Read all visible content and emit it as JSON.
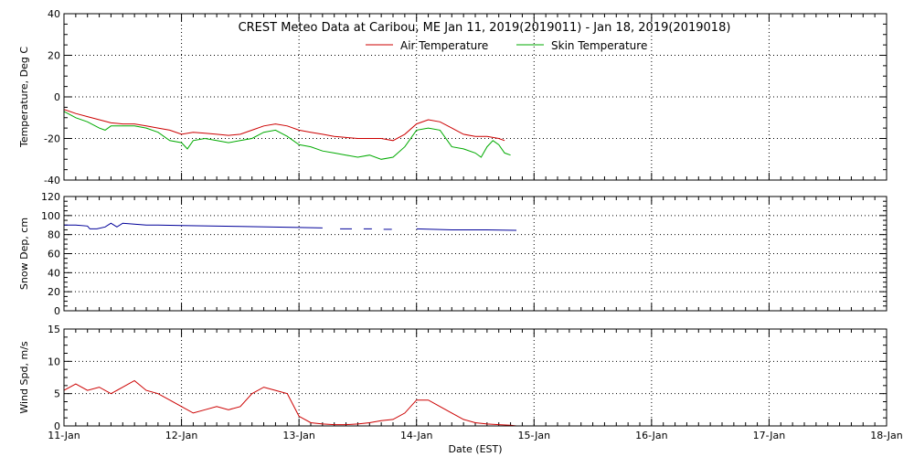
{
  "chart_data": {
    "type": "line",
    "title": "CREST Meteo Data at Caribou, ME   Jan 11, 2019(2019011) - Jan 18, 2019(2019018)",
    "x_tick_labels": [
      "11-Jan",
      "12-Jan",
      "13-Jan",
      "14-Jan",
      "15-Jan",
      "16-Jan",
      "17-Jan",
      "18-Jan"
    ],
    "xlabel": "Date (EST)",
    "xlim": [
      0,
      7
    ],
    "grid": true,
    "panels": [
      {
        "name": "temperature",
        "ylabel": "Temperature, Deg C",
        "ylim": [
          -40,
          40
        ],
        "yticks": [
          -40,
          -20,
          0,
          20,
          40
        ],
        "legend": "top-center",
        "series": [
          {
            "name": "Air Temperature",
            "color": "#cc0000",
            "points": [
              [
                0,
                -6
              ],
              [
                0.1,
                -8
              ],
              [
                0.2,
                -9.5
              ],
              [
                0.3,
                -11
              ],
              [
                0.4,
                -12.5
              ],
              [
                0.5,
                -13
              ],
              [
                0.6,
                -13
              ],
              [
                0.7,
                -14
              ],
              [
                0.8,
                -15
              ],
              [
                0.9,
                -16
              ],
              [
                1,
                -18
              ],
              [
                1.1,
                -17
              ],
              [
                1.2,
                -17.5
              ],
              [
                1.3,
                -18
              ],
              [
                1.4,
                -18.5
              ],
              [
                1.5,
                -18
              ],
              [
                1.6,
                -16
              ],
              [
                1.7,
                -14
              ],
              [
                1.8,
                -13
              ],
              [
                1.9,
                -14
              ],
              [
                2,
                -16
              ],
              [
                2.1,
                -17
              ],
              [
                2.2,
                -18
              ],
              [
                2.3,
                -19
              ],
              [
                2.4,
                -19.5
              ],
              [
                2.5,
                -20
              ],
              [
                2.6,
                -20
              ],
              [
                2.7,
                -20
              ],
              [
                2.8,
                -21
              ],
              [
                2.9,
                -18
              ],
              [
                3,
                -13
              ],
              [
                3.1,
                -11
              ],
              [
                3.2,
                -12
              ],
              [
                3.3,
                -15
              ],
              [
                3.4,
                -18
              ],
              [
                3.5,
                -19
              ],
              [
                3.6,
                -19
              ],
              [
                3.7,
                -20
              ],
              [
                3.75,
                -21
              ]
            ]
          },
          {
            "name": "Skin Temperature",
            "color": "#00aa00",
            "points": [
              [
                0,
                -7
              ],
              [
                0.1,
                -10
              ],
              [
                0.2,
                -12
              ],
              [
                0.3,
                -15
              ],
              [
                0.35,
                -16
              ],
              [
                0.4,
                -14
              ],
              [
                0.5,
                -14
              ],
              [
                0.6,
                -14
              ],
              [
                0.7,
                -15
              ],
              [
                0.8,
                -17
              ],
              [
                0.9,
                -21
              ],
              [
                1,
                -22
              ],
              [
                1.05,
                -25
              ],
              [
                1.1,
                -21
              ],
              [
                1.2,
                -20
              ],
              [
                1.3,
                -21
              ],
              [
                1.4,
                -22
              ],
              [
                1.5,
                -21
              ],
              [
                1.6,
                -20
              ],
              [
                1.7,
                -17
              ],
              [
                1.8,
                -16
              ],
              [
                1.9,
                -19
              ],
              [
                2,
                -23
              ],
              [
                2.1,
                -24
              ],
              [
                2.2,
                -26
              ],
              [
                2.3,
                -27
              ],
              [
                2.4,
                -28
              ],
              [
                2.5,
                -29
              ],
              [
                2.6,
                -28
              ],
              [
                2.7,
                -30
              ],
              [
                2.8,
                -29
              ],
              [
                2.9,
                -24
              ],
              [
                3,
                -16
              ],
              [
                3.1,
                -15
              ],
              [
                3.2,
                -16
              ],
              [
                3.3,
                -24
              ],
              [
                3.4,
                -25
              ],
              [
                3.5,
                -27
              ],
              [
                3.55,
                -29
              ],
              [
                3.6,
                -24
              ],
              [
                3.65,
                -21
              ],
              [
                3.7,
                -23
              ],
              [
                3.75,
                -27
              ],
              [
                3.8,
                -28
              ]
            ]
          }
        ]
      },
      {
        "name": "snow-depth",
        "ylabel": "Snow Dep, cm",
        "ylim": [
          0,
          120
        ],
        "yticks": [
          0,
          20,
          40,
          60,
          80,
          100,
          120
        ],
        "series": [
          {
            "name": "",
            "color": "#000099",
            "segments": [
              [
                [
                  0,
                  90
                ],
                [
                  0.1,
                  90
                ],
                [
                  0.2,
                  89
                ],
                [
                  0.22,
                  86
                ],
                [
                  0.28,
                  86
                ],
                [
                  0.35,
                  88
                ],
                [
                  0.4,
                  92
                ],
                [
                  0.45,
                  88
                ],
                [
                  0.5,
                  92
                ],
                [
                  0.6,
                  91
                ],
                [
                  0.7,
                  90
                ],
                [
                  0.8,
                  90
                ],
                [
                  1,
                  89.5
                ],
                [
                  1.5,
                  88.5
                ],
                [
                  2,
                  87.5
                ],
                [
                  2.2,
                  87
                ]
              ],
              [
                [
                  2.35,
                  86
                ],
                [
                  2.45,
                  86
                ]
              ],
              [
                [
                  2.55,
                  86
                ],
                [
                  2.62,
                  86
                ]
              ],
              [
                [
                  2.72,
                  85.5
                ],
                [
                  2.79,
                  85.5
                ]
              ],
              [
                [
                  3.0,
                  86
                ],
                [
                  3.3,
                  85
                ],
                [
                  3.6,
                  85
                ],
                [
                  3.85,
                  84.5
                ]
              ]
            ]
          }
        ]
      },
      {
        "name": "wind-speed",
        "ylabel": "Wind Spd, m/s",
        "ylim": [
          0,
          15
        ],
        "yticks": [
          0,
          5,
          10,
          15
        ],
        "series": [
          {
            "name": "",
            "color": "#cc0000",
            "points": [
              [
                0,
                5.5
              ],
              [
                0.1,
                6.5
              ],
              [
                0.2,
                5.5
              ],
              [
                0.3,
                6
              ],
              [
                0.4,
                5
              ],
              [
                0.5,
                6
              ],
              [
                0.6,
                7
              ],
              [
                0.7,
                5.5
              ],
              [
                0.8,
                5
              ],
              [
                0.9,
                4
              ],
              [
                1,
                3
              ],
              [
                1.1,
                2
              ],
              [
                1.2,
                2.5
              ],
              [
                1.3,
                3
              ],
              [
                1.4,
                2.5
              ],
              [
                1.5,
                3
              ],
              [
                1.6,
                5
              ],
              [
                1.7,
                6
              ],
              [
                1.8,
                5.5
              ],
              [
                1.9,
                5
              ],
              [
                2,
                1.5
              ],
              [
                2.1,
                0.5
              ],
              [
                2.2,
                0.3
              ],
              [
                2.3,
                0.2
              ],
              [
                2.4,
                0.2
              ],
              [
                2.5,
                0.3
              ],
              [
                2.6,
                0.5
              ],
              [
                2.7,
                0.8
              ],
              [
                2.8,
                1
              ],
              [
                2.9,
                2
              ],
              [
                3,
                4
              ],
              [
                3.1,
                4
              ],
              [
                3.2,
                3
              ],
              [
                3.3,
                2
              ],
              [
                3.4,
                1
              ],
              [
                3.5,
                0.5
              ],
              [
                3.6,
                0.3
              ],
              [
                3.7,
                0.2
              ],
              [
                3.8,
                0.1
              ],
              [
                3.85,
                0
              ]
            ]
          }
        ]
      }
    ]
  }
}
